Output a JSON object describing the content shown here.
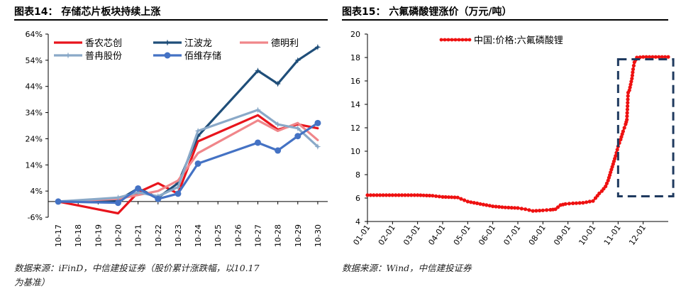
{
  "panels": [
    {
      "title": "图表14：  存储芯片板块持续上涨",
      "source": "数据来源：iFinD，中信建投证券（股价累计涨跌幅，以10.17",
      "source2": "为基准）"
    },
    {
      "title": "图表15：  六氟磷酸锂涨价（万元/吨）",
      "source": "数据来源：Wind，中信建投证券"
    }
  ],
  "chart_data": [
    {
      "type": "line",
      "title": "存储芯片板块持续上涨",
      "xlabel": "",
      "ylabel": "",
      "categories": [
        "10-17",
        "10-18",
        "10-19",
        "10-20",
        "10-21",
        "10-22",
        "10-23",
        "10-24",
        "10-25",
        "10-26",
        "10-27",
        "10-28",
        "10-29",
        "10-30"
      ],
      "yticks": [
        "-6%",
        "4%",
        "14%",
        "24%",
        "34%",
        "44%",
        "54%",
        "64%"
      ],
      "ylim": [
        -6,
        64
      ],
      "legend": "top-left",
      "series": [
        {
          "name": "香农芯创",
          "color": "#e8141c",
          "marker": "none",
          "points": [
            [
              0,
              0
            ],
            [
              3,
              -4.5
            ],
            [
              4,
              3.5
            ],
            [
              5,
              7
            ],
            [
              6,
              3
            ],
            [
              7,
              23
            ],
            [
              10,
              33
            ],
            [
              11,
              27.5
            ],
            [
              12,
              29.5
            ],
            [
              13,
              28
            ]
          ]
        },
        {
          "name": "江波龙",
          "color": "#1f4e79",
          "marker": "star",
          "points": [
            [
              0,
              0
            ],
            [
              3,
              0.5
            ],
            [
              4,
              5
            ],
            [
              5,
              1.5
            ],
            [
              6,
              7
            ],
            [
              7,
              25
            ],
            [
              10,
              50
            ],
            [
              11,
              45
            ],
            [
              12,
              54
            ],
            [
              13,
              59
            ]
          ]
        },
        {
          "name": "德明利",
          "color": "#f0868a",
          "marker": "none",
          "points": [
            [
              0,
              0
            ],
            [
              3,
              1
            ],
            [
              4,
              2.5
            ],
            [
              5,
              4
            ],
            [
              6,
              8
            ],
            [
              7,
              18.5
            ],
            [
              10,
              31
            ],
            [
              11,
              27
            ],
            [
              12,
              30
            ],
            [
              13,
              23.5
            ]
          ]
        },
        {
          "name": "普冉股份",
          "color": "#8aa9c8",
          "marker": "star",
          "points": [
            [
              0,
              0
            ],
            [
              3,
              1.5
            ],
            [
              4,
              3.5
            ],
            [
              5,
              2
            ],
            [
              6,
              5.5
            ],
            [
              7,
              27
            ],
            [
              10,
              35
            ],
            [
              11,
              29.5
            ],
            [
              12,
              28
            ],
            [
              13,
              21
            ]
          ]
        },
        {
          "name": "佰维存储",
          "color": "#4472c4",
          "marker": "circle",
          "points": [
            [
              0,
              0
            ],
            [
              3,
              -0.5
            ],
            [
              4,
              5
            ],
            [
              5,
              1
            ],
            [
              6,
              3
            ],
            [
              7,
              14.5
            ],
            [
              10,
              22.5
            ],
            [
              11,
              19.5
            ],
            [
              12,
              25
            ],
            [
              13,
              30
            ]
          ]
        }
      ]
    },
    {
      "type": "line",
      "title": "六氟磷酸锂涨价（万元/吨）",
      "xlabel": "",
      "ylabel": "",
      "categories": [
        "01-01",
        "02-01",
        "03-01",
        "04-01",
        "05-01",
        "06-01",
        "07-01",
        "08-01",
        "09-01",
        "10-01",
        "11-01",
        "12-01"
      ],
      "yticks": [
        "4",
        "6",
        "8",
        "10",
        "12",
        "14",
        "16",
        "18",
        "20"
      ],
      "ylim": [
        4,
        20
      ],
      "xlim": [
        0,
        12
      ],
      "legend": "top-left",
      "series": [
        {
          "name": "中国:价格:六氟磷酸锂",
          "color": "#ee1111",
          "marker": "circle",
          "points": [
            [
              0,
              6.25
            ],
            [
              1,
              6.25
            ],
            [
              2,
              6.25
            ],
            [
              2.6,
              6.2
            ],
            [
              3,
              6.1
            ],
            [
              3.6,
              6.05
            ],
            [
              4,
              5.7
            ],
            [
              4.5,
              5.5
            ],
            [
              5,
              5.3
            ],
            [
              5.5,
              5.2
            ],
            [
              6,
              5.15
            ],
            [
              6.3,
              5.05
            ],
            [
              6.6,
              4.9
            ],
            [
              7,
              4.95
            ],
            [
              7.3,
              5.0
            ],
            [
              7.5,
              5.05
            ],
            [
              7.7,
              5.4
            ],
            [
              7.9,
              5.5
            ],
            [
              8.2,
              5.55
            ],
            [
              8.6,
              5.6
            ],
            [
              9,
              5.75
            ],
            [
              9.1,
              6.0
            ],
            [
              9.25,
              6.4
            ],
            [
              9.35,
              6.6
            ],
            [
              9.5,
              7.0
            ],
            [
              9.6,
              7.5
            ],
            [
              9.7,
              8.2
            ],
            [
              9.8,
              8.9
            ],
            [
              9.9,
              9.6
            ],
            [
              10,
              10.4
            ],
            [
              10.1,
              11.0
            ],
            [
              10.2,
              11.7
            ],
            [
              10.3,
              12.3
            ],
            [
              10.35,
              12.7
            ],
            [
              10.4,
              15.0
            ],
            [
              10.45,
              15.2
            ],
            [
              10.55,
              16.2
            ],
            [
              10.6,
              17.0
            ],
            [
              10.65,
              17.6
            ],
            [
              10.75,
              18.0
            ],
            [
              11,
              18.05
            ],
            [
              11.5,
              18.05
            ],
            [
              12,
              18.05
            ]
          ]
        }
      ],
      "highlight_box": {
        "x0": 10.0,
        "x1": 12.2,
        "y0": 6.15,
        "y1": 17.85
      }
    }
  ]
}
